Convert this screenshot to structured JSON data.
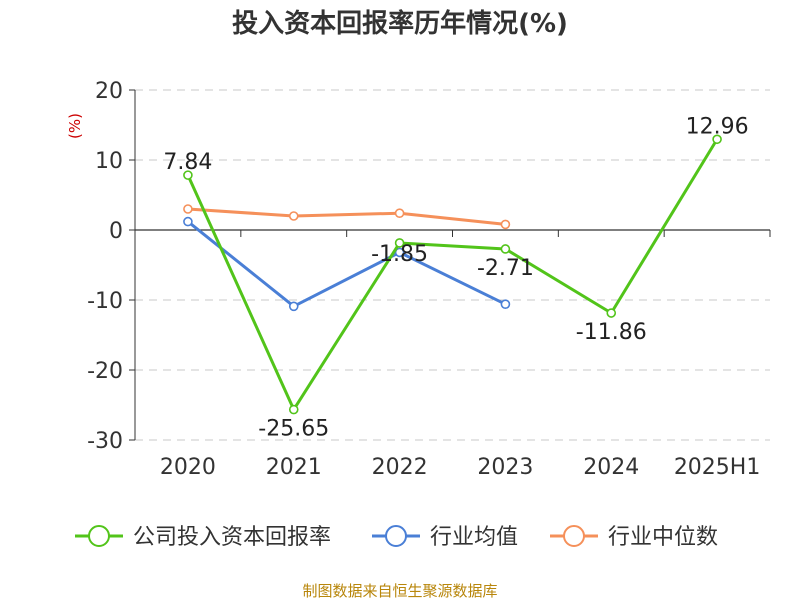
{
  "chart_data": {
    "type": "line",
    "title": "投入资本回报率历年情况(%)",
    "ylabel": "(%)",
    "categories": [
      "2020",
      "2021",
      "2022",
      "2023",
      "2024",
      "2025H1"
    ],
    "ylim": [
      -30,
      20
    ],
    "yticks": [
      20,
      10,
      0,
      -10,
      -20,
      -30
    ],
    "grid": true,
    "legend": "bottom",
    "series": [
      {
        "name": "公司投入资本回报率",
        "color": "#52c41a",
        "values": [
          7.84,
          -25.65,
          -1.85,
          -2.71,
          -11.86,
          12.96
        ],
        "labels": [
          "7.84",
          "-25.65",
          "-1.85",
          "-2.71",
          "-11.86",
          "12.96"
        ]
      },
      {
        "name": "行业均值",
        "color": "#4a7fd6",
        "values": [
          1.2,
          -10.9,
          -3.2,
          -10.6,
          null,
          null
        ]
      },
      {
        "name": "行业中位数",
        "color": "#f5905a",
        "values": [
          3.0,
          2.0,
          2.4,
          0.8,
          null,
          null
        ]
      }
    ]
  },
  "footer": {
    "source": "制图数据来自恒生聚源数据库"
  }
}
